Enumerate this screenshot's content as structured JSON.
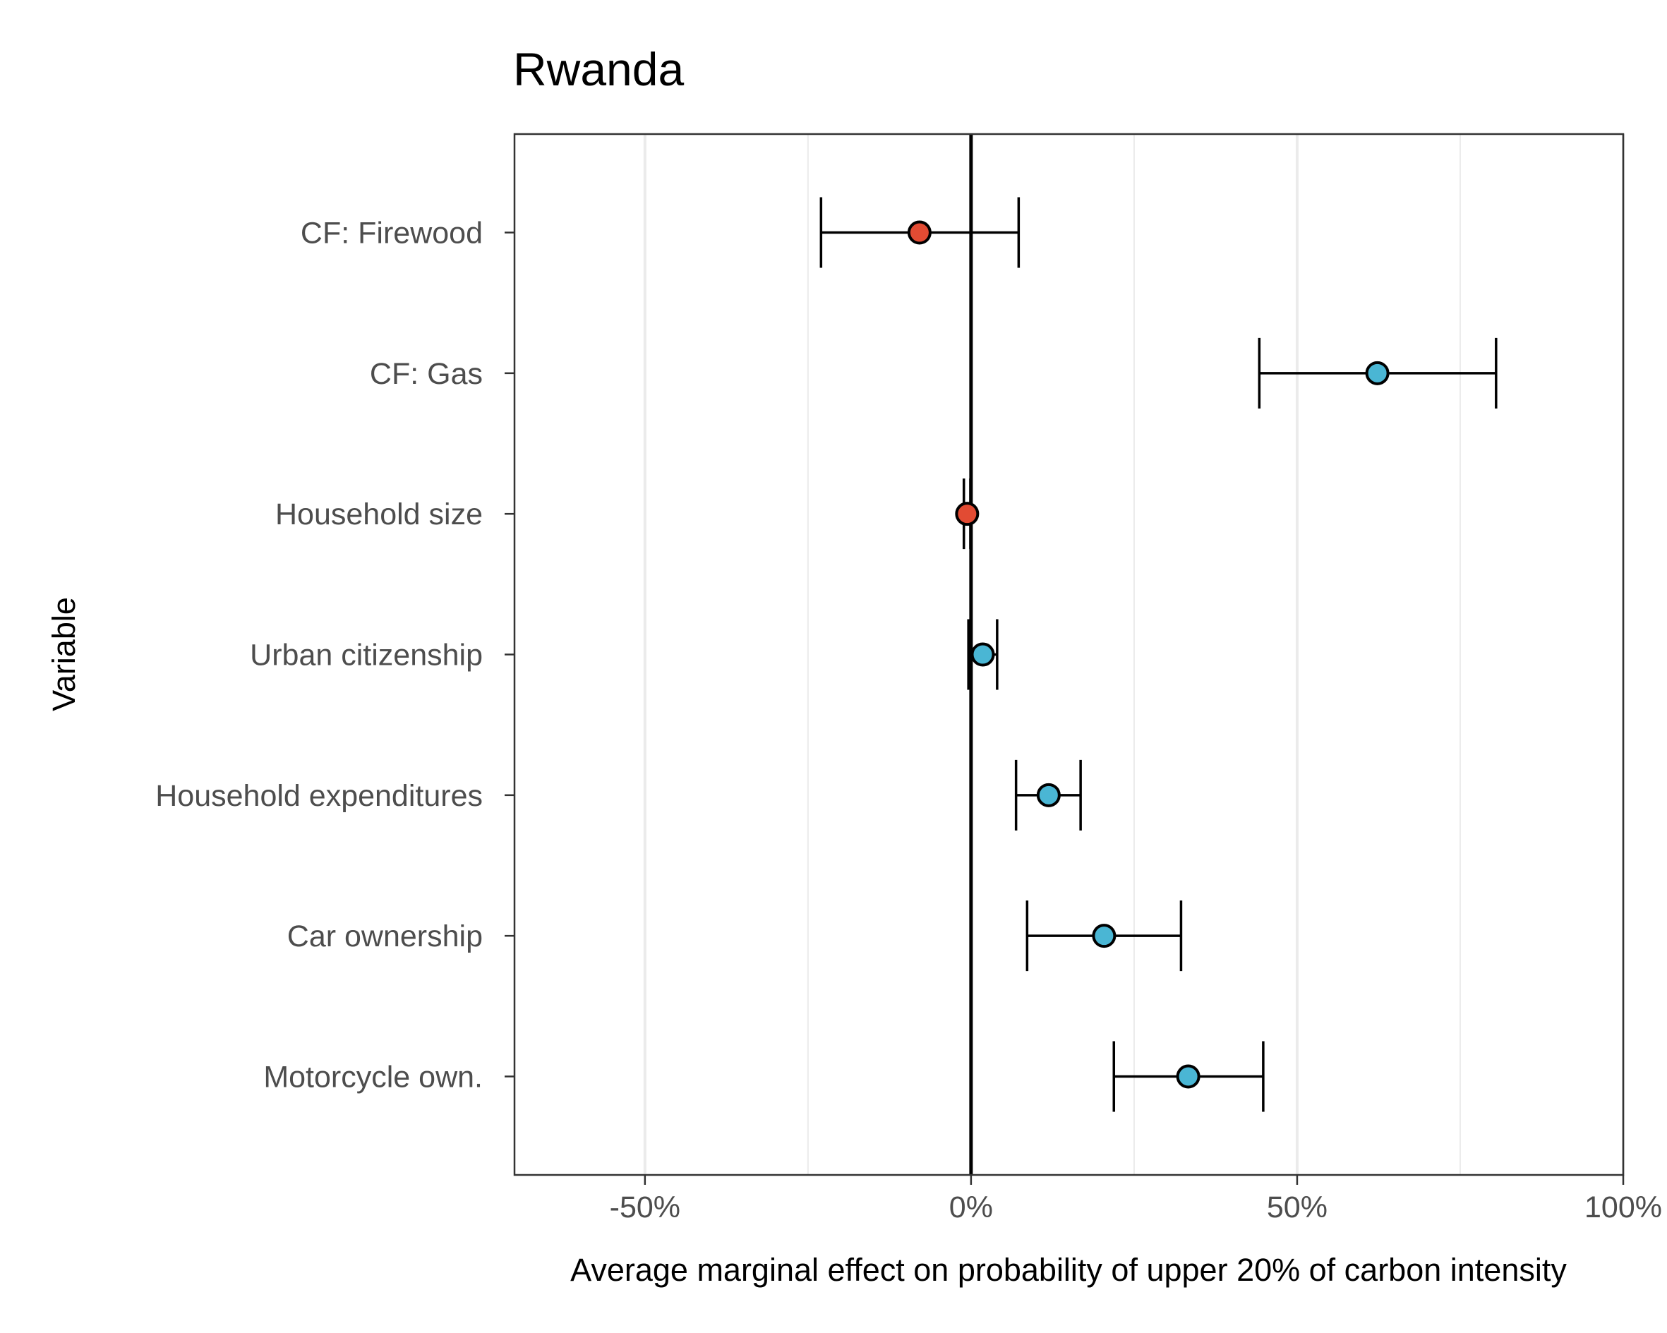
{
  "chart_data": {
    "type": "scatter",
    "subtype": "coefficient-plot-with-error-bars",
    "title": "Rwanda",
    "xlabel": "Average marginal effect on probability of upper 20% of carbon intensity",
    "ylabel": "Variable",
    "xlim": [
      -70,
      100
    ],
    "x_unit": "%",
    "x_ticks": [
      -50,
      0,
      50,
      100
    ],
    "x_tick_labels": [
      "-50%",
      "0%",
      "50%",
      "100%"
    ],
    "x_minor_gridlines": [
      -25,
      25,
      75
    ],
    "grid": "vertical",
    "reference_line_x": 0,
    "colors": {
      "negative": "#e24b33",
      "positive": "#4ab6d4",
      "outline": "#000000",
      "frame": "#333333",
      "grid": "#ebebeb"
    },
    "categories": [
      "CF: Firewood",
      "CF: Gas",
      "Household size",
      "Urban citizenship",
      "Household expenditures",
      "Car ownership",
      "Motorcycle own."
    ],
    "points": [
      {
        "label": "CF: Firewood",
        "estimate": -7.9,
        "lower": -23,
        "upper": 7.3,
        "sign": "negative"
      },
      {
        "label": "CF: Gas",
        "estimate": 62.3,
        "lower": 44.2,
        "upper": 80.5,
        "sign": "positive"
      },
      {
        "label": "Household size",
        "estimate": -0.6,
        "lower": -1.1,
        "upper": -0.1,
        "sign": "negative"
      },
      {
        "label": "Urban citizenship",
        "estimate": 1.8,
        "lower": -0.4,
        "upper": 4,
        "sign": "positive"
      },
      {
        "label": "Household expenditures",
        "estimate": 11.9,
        "lower": 6.9,
        "upper": 16.8,
        "sign": "positive"
      },
      {
        "label": "Car ownership",
        "estimate": 20.4,
        "lower": 8.6,
        "upper": 32.2,
        "sign": "positive"
      },
      {
        "label": "Motorcycle own.",
        "estimate": 33.3,
        "lower": 21.9,
        "upper": 44.8,
        "sign": "positive"
      }
    ]
  }
}
